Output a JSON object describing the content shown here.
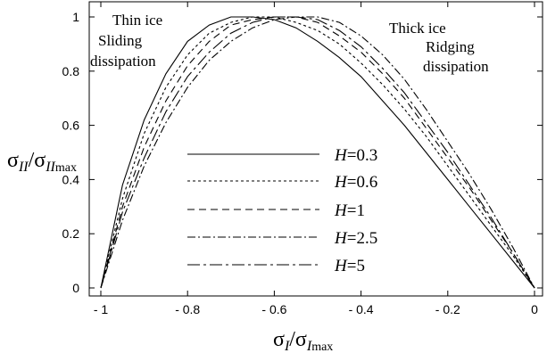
{
  "chart_data": {
    "type": "line",
    "xlabel": {
      "sym": "σ",
      "sub": "I",
      "div": "/σ",
      "sub2": "I",
      "sub3": "max"
    },
    "ylabel": {
      "sym": "σ",
      "sub": "II",
      "div": "/σ",
      "sub2": "II",
      "sub3": "max"
    },
    "xlim": [
      -1,
      0
    ],
    "ylim": [
      0,
      1
    ],
    "xticks": [
      "- 1",
      "- 0.8",
      "- 0.6",
      "- 0.4",
      "- 0.2",
      "0"
    ],
    "xtick_values": [
      -1,
      -0.8,
      -0.6,
      -0.4,
      -0.2,
      0
    ],
    "yticks": [
      "0",
      "0.2",
      "0.4",
      "0.6",
      "0.8",
      "1"
    ],
    "ytick_values": [
      0,
      0.2,
      0.4,
      0.6,
      0.8,
      1
    ],
    "grid": false,
    "legend_position": "center",
    "annotations": [
      {
        "text": "Thin ice",
        "pos": "top-left"
      },
      {
        "text": "Sliding",
        "pos": "top-left"
      },
      {
        "text": "dissipation",
        "pos": "top-left"
      },
      {
        "text": "Thick ice",
        "pos": "top-right"
      },
      {
        "text": "Ridging",
        "pos": "top-right"
      },
      {
        "text": "dissipation",
        "pos": "top-right"
      }
    ],
    "series": [
      {
        "name": "H=0.3",
        "H": "H",
        "val": "=0.3",
        "style": "solid",
        "x": [
          -1,
          -0.95,
          -0.9,
          -0.85,
          -0.8,
          -0.75,
          -0.7,
          -0.65,
          -0.6,
          -0.55,
          -0.5,
          -0.45,
          -0.4,
          -0.35,
          -0.3,
          -0.25,
          -0.2,
          -0.15,
          -0.1,
          -0.05,
          0
        ],
        "y": [
          0,
          0.38,
          0.62,
          0.79,
          0.91,
          0.97,
          1.0,
          1.0,
          0.99,
          0.96,
          0.91,
          0.85,
          0.78,
          0.69,
          0.6,
          0.5,
          0.4,
          0.3,
          0.2,
          0.1,
          0
        ]
      },
      {
        "name": "H=0.6",
        "H": "H",
        "val": "=0.6",
        "style": "dotted",
        "x": [
          -1,
          -0.95,
          -0.9,
          -0.85,
          -0.8,
          -0.75,
          -0.7,
          -0.65,
          -0.6,
          -0.55,
          -0.5,
          -0.45,
          -0.4,
          -0.35,
          -0.3,
          -0.25,
          -0.2,
          -0.15,
          -0.1,
          -0.05,
          0
        ],
        "y": [
          0,
          0.33,
          0.57,
          0.74,
          0.86,
          0.94,
          0.98,
          1.0,
          1.0,
          0.98,
          0.95,
          0.9,
          0.83,
          0.75,
          0.66,
          0.56,
          0.45,
          0.34,
          0.23,
          0.12,
          0
        ]
      },
      {
        "name": "H=1",
        "H": "H",
        "val": "=1",
        "style": "dashed",
        "x": [
          -1,
          -0.95,
          -0.9,
          -0.85,
          -0.8,
          -0.75,
          -0.7,
          -0.65,
          -0.6,
          -0.55,
          -0.5,
          -0.45,
          -0.4,
          -0.35,
          -0.3,
          -0.25,
          -0.2,
          -0.15,
          -0.1,
          -0.05,
          0
        ],
        "y": [
          0,
          0.3,
          0.52,
          0.69,
          0.82,
          0.91,
          0.97,
          0.99,
          1.0,
          1.0,
          0.98,
          0.93,
          0.87,
          0.79,
          0.7,
          0.59,
          0.48,
          0.37,
          0.25,
          0.13,
          0
        ]
      },
      {
        "name": "H=2.5",
        "H": "H",
        "val": "=2.5",
        "style": "dashdot",
        "x": [
          -1,
          -0.95,
          -0.9,
          -0.85,
          -0.8,
          -0.75,
          -0.7,
          -0.65,
          -0.6,
          -0.55,
          -0.5,
          -0.45,
          -0.4,
          -0.35,
          -0.3,
          -0.25,
          -0.2,
          -0.15,
          -0.1,
          -0.05,
          0
        ],
        "y": [
          0,
          0.25,
          0.45,
          0.61,
          0.74,
          0.84,
          0.91,
          0.96,
          0.99,
          1.0,
          1.0,
          0.98,
          0.93,
          0.86,
          0.77,
          0.66,
          0.54,
          0.42,
          0.29,
          0.15,
          0
        ]
      },
      {
        "name": "H=5",
        "H": "H",
        "val": "=5",
        "style": "longdashdot",
        "x": [
          -1,
          -0.95,
          -0.9,
          -0.85,
          -0.8,
          -0.75,
          -0.7,
          -0.65,
          -0.6,
          -0.55,
          -0.5,
          -0.45,
          -0.4,
          -0.35,
          -0.3,
          -0.25,
          -0.2,
          -0.15,
          -0.1,
          -0.05,
          0
        ],
        "y": [
          0,
          0.28,
          0.48,
          0.65,
          0.78,
          0.87,
          0.94,
          0.98,
          1.0,
          1.0,
          0.99,
          0.95,
          0.89,
          0.81,
          0.72,
          0.61,
          0.5,
          0.38,
          0.26,
          0.13,
          0
        ]
      }
    ]
  }
}
